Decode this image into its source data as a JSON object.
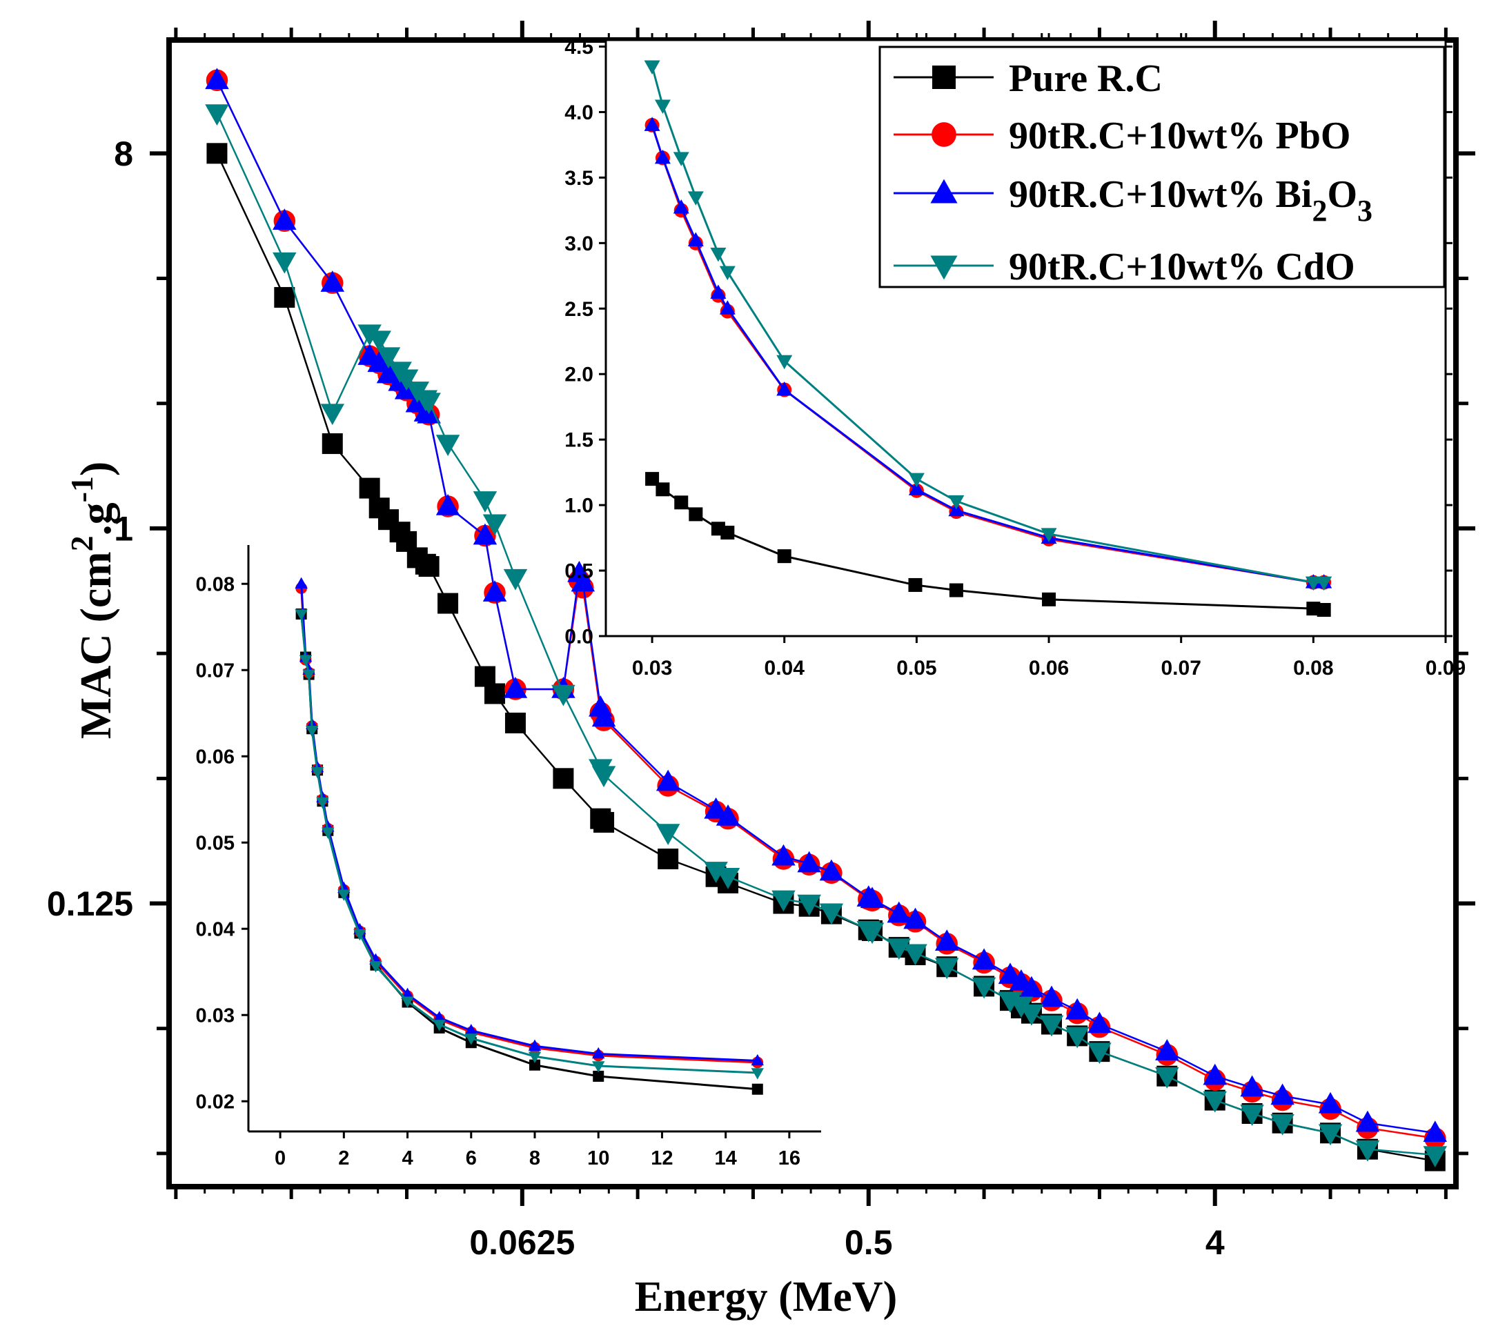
{
  "colors": {
    "pure": "#000000",
    "pbo": "#ff0000",
    "bi": "#0000ff",
    "cdo": "#008080",
    "axis": "#000000",
    "background": "#ffffff"
  },
  "chart_data": [
    {
      "id": "main",
      "type": "line",
      "title": "",
      "xlabel": "Energy (MeV)",
      "ylabel": "MAC (cm2.g-1)",
      "ylabel_parts": {
        "base": "MAC (cm",
        "sup1": "2",
        "mid": ".g",
        "sup2": "-1",
        "end": ")"
      },
      "xscale": "log2",
      "yscale": "log2",
      "xlim": [
        0.0075,
        17
      ],
      "ylim": [
        0.026,
        15
      ],
      "xticks": [
        {
          "v": 0.0625,
          "label": "0.0625"
        },
        {
          "v": 0.5,
          "label": "0.5"
        },
        {
          "v": 4,
          "label": "4"
        }
      ],
      "yticks": [
        {
          "v": 0.125,
          "label": "0.125"
        },
        {
          "v": 1,
          "label": "1"
        },
        {
          "v": 8,
          "label": "8"
        }
      ],
      "series": [
        {
          "name": "Pure R.C",
          "key": "pure",
          "marker": "square",
          "x": [
            0.01,
            0.015,
            0.02,
            0.025,
            0.0265,
            0.028,
            0.03,
            0.0312,
            0.0333,
            0.035,
            0.0357,
            0.04,
            0.05,
            0.053,
            0.06,
            0.08,
            0.1,
            0.102,
            0.15,
            0.2,
            0.215,
            0.3,
            0.35,
            0.4,
            0.5,
            0.511,
            0.6,
            0.662,
            0.8,
            1.0,
            1.17,
            1.25,
            1.33,
            1.5,
            1.75,
            2.0,
            3.0,
            4.0,
            5.0,
            6.0,
            8.0,
            10.0,
            15.0
          ],
          "y": [
            8.0,
            3.6,
            1.6,
            1.25,
            1.12,
            1.05,
            0.98,
            0.93,
            0.85,
            0.82,
            0.81,
            0.66,
            0.44,
            0.4,
            0.34,
            0.25,
            0.2,
            0.196,
            0.16,
            0.145,
            0.14,
            0.125,
            0.123,
            0.118,
            0.108,
            0.1075,
            0.098,
            0.094,
            0.088,
            0.079,
            0.073,
            0.07,
            0.068,
            0.064,
            0.06,
            0.055,
            0.048,
            0.042,
            0.039,
            0.037,
            0.035,
            0.032,
            0.03
          ]
        },
        {
          "name": "90tR.C+10wt% PbO",
          "key": "pbo",
          "marker": "circle",
          "x": [
            0.01,
            0.015,
            0.02,
            0.025,
            0.0265,
            0.028,
            0.03,
            0.0312,
            0.0333,
            0.035,
            0.0357,
            0.04,
            0.05,
            0.053,
            0.06,
            0.08,
            0.088,
            0.09,
            0.1,
            0.102,
            0.15,
            0.2,
            0.215,
            0.3,
            0.35,
            0.4,
            0.5,
            0.511,
            0.6,
            0.662,
            0.8,
            1.0,
            1.17,
            1.25,
            1.33,
            1.5,
            1.75,
            2.0,
            3.0,
            4.0,
            5.0,
            6.0,
            8.0,
            10.0,
            15.0
          ],
          "y": [
            12.0,
            5.5,
            3.9,
            2.6,
            2.5,
            2.35,
            2.25,
            2.15,
            2.0,
            1.9,
            1.88,
            1.13,
            0.96,
            0.7,
            0.41,
            0.41,
            0.75,
            0.72,
            0.36,
            0.345,
            0.24,
            0.208,
            0.2,
            0.16,
            0.155,
            0.148,
            0.128,
            0.127,
            0.117,
            0.113,
            0.1,
            0.09,
            0.083,
            0.08,
            0.077,
            0.073,
            0.068,
            0.063,
            0.054,
            0.047,
            0.044,
            0.042,
            0.04,
            0.036,
            0.034
          ]
        },
        {
          "name": "90tR.C+10wt% Bi2O3",
          "key": "bi",
          "marker": "triangle",
          "legend_parts": {
            "base": "90tR.C+10wt% Bi",
            "sub1": "2",
            "mid": "O",
            "sub2": "3"
          },
          "x": [
            0.01,
            0.015,
            0.02,
            0.025,
            0.0265,
            0.028,
            0.03,
            0.0312,
            0.0333,
            0.035,
            0.0357,
            0.04,
            0.05,
            0.053,
            0.06,
            0.08,
            0.088,
            0.09,
            0.1,
            0.102,
            0.15,
            0.2,
            0.215,
            0.3,
            0.35,
            0.4,
            0.5,
            0.511,
            0.6,
            0.662,
            0.8,
            1.0,
            1.17,
            1.25,
            1.33,
            1.5,
            1.75,
            2.0,
            3.0,
            4.0,
            5.0,
            6.0,
            8.0,
            10.0,
            15.0
          ],
          "y": [
            12.0,
            5.5,
            3.9,
            2.6,
            2.5,
            2.35,
            2.25,
            2.15,
            2.0,
            1.9,
            1.88,
            1.13,
            0.96,
            0.7,
            0.41,
            0.41,
            0.78,
            0.74,
            0.37,
            0.35,
            0.245,
            0.21,
            0.202,
            0.162,
            0.156,
            0.149,
            0.129,
            0.128,
            0.118,
            0.114,
            0.101,
            0.091,
            0.084,
            0.081,
            0.078,
            0.074,
            0.069,
            0.064,
            0.055,
            0.048,
            0.045,
            0.043,
            0.041,
            0.037,
            0.035
          ]
        },
        {
          "name": "90tR.C+10wt% CdO",
          "key": "cdo",
          "marker": "triangle-down",
          "x": [
            0.01,
            0.015,
            0.02,
            0.025,
            0.0265,
            0.028,
            0.03,
            0.0312,
            0.0333,
            0.035,
            0.0357,
            0.04,
            0.05,
            0.053,
            0.06,
            0.08,
            0.1,
            0.102,
            0.15,
            0.2,
            0.215,
            0.3,
            0.35,
            0.4,
            0.5,
            0.511,
            0.6,
            0.662,
            0.8,
            1.0,
            1.17,
            1.25,
            1.33,
            1.5,
            1.75,
            2.0,
            3.0,
            4.0,
            5.0,
            6.0,
            8.0,
            10.0,
            15.0
          ],
          "y": [
            10.0,
            4.4,
            1.9,
            2.95,
            2.85,
            2.6,
            2.4,
            2.3,
            2.15,
            2.05,
            2.02,
            1.6,
            1.17,
            1.03,
            0.76,
            0.4,
            0.265,
            0.255,
            0.185,
            0.15,
            0.145,
            0.128,
            0.125,
            0.119,
            0.108,
            0.107,
            0.098,
            0.095,
            0.088,
            0.079,
            0.073,
            0.071,
            0.068,
            0.064,
            0.06,
            0.055,
            0.048,
            0.042,
            0.039,
            0.037,
            0.035,
            0.032,
            0.031
          ]
        }
      ],
      "legend": {
        "placement": "top-right"
      }
    },
    {
      "id": "inset-top",
      "type": "line",
      "xlabel": "",
      "ylabel": "",
      "xlim": [
        0.0265,
        0.09
      ],
      "ylim": [
        0,
        4.55
      ],
      "xticks": [
        {
          "v": 0.03,
          "label": "0.03"
        },
        {
          "v": 0.04,
          "label": "0.04"
        },
        {
          "v": 0.05,
          "label": "0.05"
        },
        {
          "v": 0.06,
          "label": "0.06"
        },
        {
          "v": 0.07,
          "label": "0.07"
        },
        {
          "v": 0.08,
          "label": "0.08"
        },
        {
          "v": 0.09,
          "label": "0.09"
        }
      ],
      "yticks": [
        {
          "v": 0,
          "label": "0.0"
        },
        {
          "v": 0.5,
          "label": "0.5"
        },
        {
          "v": 1.0,
          "label": "1.0"
        },
        {
          "v": 1.5,
          "label": "1.5"
        },
        {
          "v": 2.0,
          "label": "2.0"
        },
        {
          "v": 2.5,
          "label": "2.5"
        },
        {
          "v": 3.0,
          "label": "3.0"
        },
        {
          "v": 3.5,
          "label": "3.5"
        },
        {
          "v": 4.0,
          "label": "4.0"
        },
        {
          "v": 4.5,
          "label": "4.5"
        }
      ],
      "series": [
        {
          "name": "Pure R.C",
          "key": "pure",
          "marker": "square",
          "x": [
            0.03,
            0.0308,
            0.0322,
            0.0333,
            0.035,
            0.0357,
            0.04,
            0.0499,
            0.053,
            0.06,
            0.08,
            0.0808
          ],
          "y": [
            1.2,
            1.12,
            1.02,
            0.93,
            0.82,
            0.79,
            0.61,
            0.39,
            0.35,
            0.28,
            0.21,
            0.2
          ]
        },
        {
          "name": "90tR.C+10wt% PbO",
          "key": "pbo",
          "marker": "circle",
          "x": [
            0.03,
            0.0308,
            0.0322,
            0.0333,
            0.035,
            0.0357,
            0.04,
            0.05,
            0.053,
            0.06,
            0.08,
            0.0808
          ],
          "y": [
            3.9,
            3.65,
            3.25,
            3.0,
            2.6,
            2.48,
            1.88,
            1.11,
            0.95,
            0.74,
            0.41,
            0.41
          ]
        },
        {
          "name": "90tR.C+10wt% Bi2O3",
          "key": "bi",
          "marker": "triangle",
          "x": [
            0.03,
            0.0308,
            0.0322,
            0.0333,
            0.035,
            0.0357,
            0.04,
            0.05,
            0.053,
            0.06,
            0.08,
            0.0808
          ],
          "y": [
            3.9,
            3.65,
            3.27,
            3.02,
            2.62,
            2.5,
            1.88,
            1.12,
            0.96,
            0.75,
            0.41,
            0.41
          ]
        },
        {
          "name": "90tR.C+10wt% CdO",
          "key": "cdo",
          "marker": "triangle-down",
          "x": [
            0.03,
            0.0308,
            0.0322,
            0.0333,
            0.035,
            0.0357,
            0.04,
            0.05,
            0.053,
            0.06,
            0.08,
            0.0808
          ],
          "y": [
            4.35,
            4.05,
            3.65,
            3.35,
            2.92,
            2.78,
            2.1,
            1.2,
            1.03,
            0.78,
            0.41,
            0.41
          ]
        }
      ]
    },
    {
      "id": "inset-bottom",
      "type": "line",
      "xlabel": "",
      "ylabel": "",
      "xlim": [
        -1,
        17
      ],
      "ylim": [
        0.0165,
        0.0845
      ],
      "xticks": [
        {
          "v": 0,
          "label": "0"
        },
        {
          "v": 2,
          "label": "2"
        },
        {
          "v": 4,
          "label": "4"
        },
        {
          "v": 6,
          "label": "6"
        },
        {
          "v": 8,
          "label": "8"
        },
        {
          "v": 10,
          "label": "10"
        },
        {
          "v": 12,
          "label": "12"
        },
        {
          "v": 14,
          "label": "14"
        },
        {
          "v": 16,
          "label": "16"
        }
      ],
      "yticks": [
        {
          "v": 0.02,
          "label": "0.02"
        },
        {
          "v": 0.03,
          "label": "0.03"
        },
        {
          "v": 0.04,
          "label": "0.04"
        },
        {
          "v": 0.05,
          "label": "0.05"
        },
        {
          "v": 0.06,
          "label": "0.06"
        },
        {
          "v": 0.07,
          "label": "0.07"
        },
        {
          "v": 0.08,
          "label": "0.08"
        }
      ],
      "series": [
        {
          "name": "Pure R.C",
          "key": "pure",
          "marker": "square",
          "x": [
            0.662,
            0.8,
            0.9,
            1.0,
            1.17,
            1.33,
            1.5,
            2.0,
            2.5,
            3.0,
            4.0,
            5.0,
            6.0,
            8.0,
            10.0,
            15.0
          ],
          "y": [
            0.0765,
            0.0715,
            0.0695,
            0.0632,
            0.0584,
            0.0548,
            0.0514,
            0.0442,
            0.0395,
            0.0358,
            0.0315,
            0.0285,
            0.0268,
            0.0242,
            0.0229,
            0.0214
          ]
        },
        {
          "name": "90tR.C+10wt% PbO",
          "key": "pbo",
          "marker": "circle",
          "x": [
            0.662,
            0.8,
            0.9,
            1.0,
            1.17,
            1.33,
            1.5,
            2.0,
            2.5,
            3.0,
            4.0,
            5.0,
            6.0,
            8.0,
            10.0,
            15.0
          ],
          "y": [
            0.0795,
            0.0712,
            0.0697,
            0.0635,
            0.0585,
            0.055,
            0.0516,
            0.0445,
            0.0397,
            0.0362,
            0.0322,
            0.0295,
            0.028,
            0.0262,
            0.0253,
            0.0245
          ]
        },
        {
          "name": "90tR.C+10wt% Bi2O3",
          "key": "bi",
          "marker": "triangle",
          "x": [
            0.662,
            0.8,
            0.9,
            1.0,
            1.17,
            1.33,
            1.5,
            2.0,
            2.5,
            3.0,
            4.0,
            5.0,
            6.0,
            8.0,
            10.0,
            15.0
          ],
          "y": [
            0.08,
            0.0715,
            0.07,
            0.0637,
            0.0587,
            0.0552,
            0.0518,
            0.0447,
            0.0399,
            0.0364,
            0.0324,
            0.0297,
            0.0282,
            0.0264,
            0.0255,
            0.0247
          ]
        },
        {
          "name": "90tR.C+10wt% CdO",
          "key": "cdo",
          "marker": "triangle-down",
          "x": [
            0.662,
            0.8,
            0.9,
            1.0,
            1.17,
            1.33,
            1.5,
            2.0,
            2.5,
            3.0,
            4.0,
            5.0,
            6.0,
            8.0,
            10.0,
            15.0
          ],
          "y": [
            0.0765,
            0.0712,
            0.0695,
            0.063,
            0.0582,
            0.0547,
            0.0512,
            0.044,
            0.0394,
            0.0357,
            0.0316,
            0.0289,
            0.0273,
            0.0252,
            0.0241,
            0.0233
          ]
        }
      ]
    }
  ]
}
